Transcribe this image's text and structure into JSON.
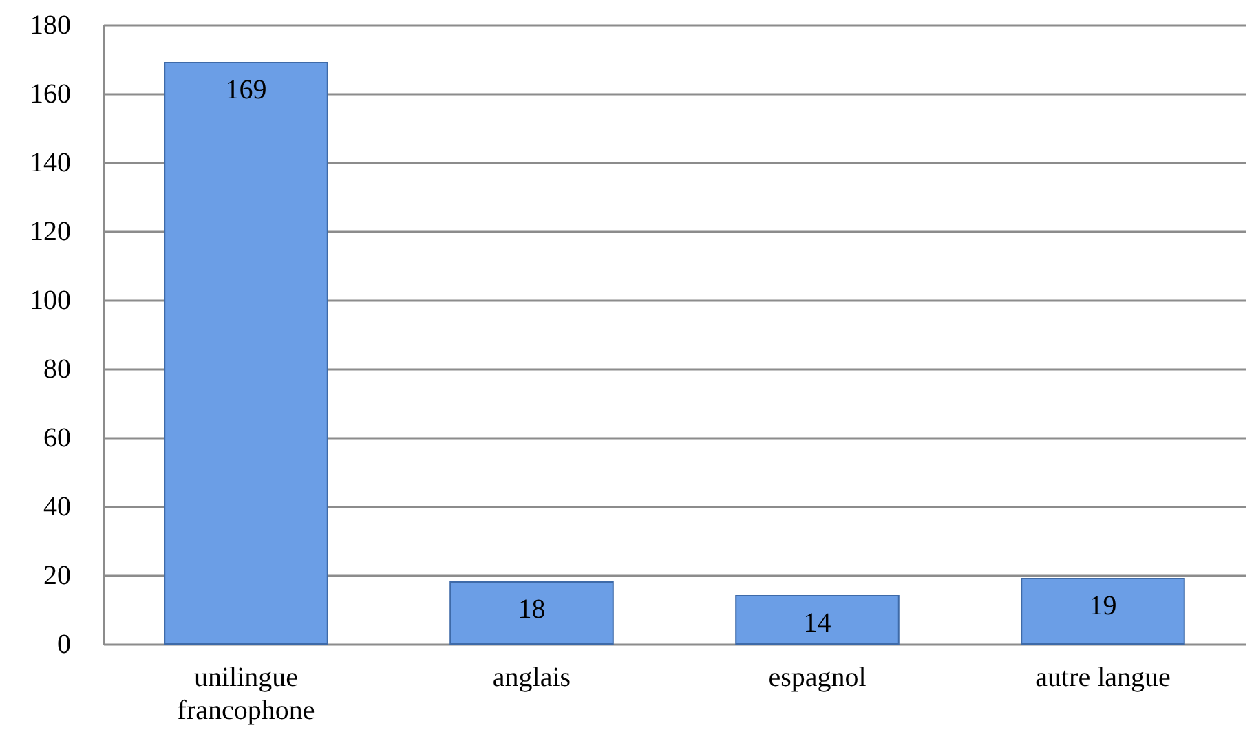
{
  "chart_data": {
    "type": "bar",
    "categories": [
      "unilingue francophone",
      "anglais",
      "espagnol",
      "autre langue"
    ],
    "values": [
      169,
      18,
      14,
      19
    ],
    "color": "#6b9ee6",
    "ylim": [
      0,
      180
    ],
    "yticks": [
      0,
      20,
      40,
      60,
      80,
      100,
      120,
      140,
      160,
      180
    ],
    "grid": "y",
    "data_labels": true
  }
}
